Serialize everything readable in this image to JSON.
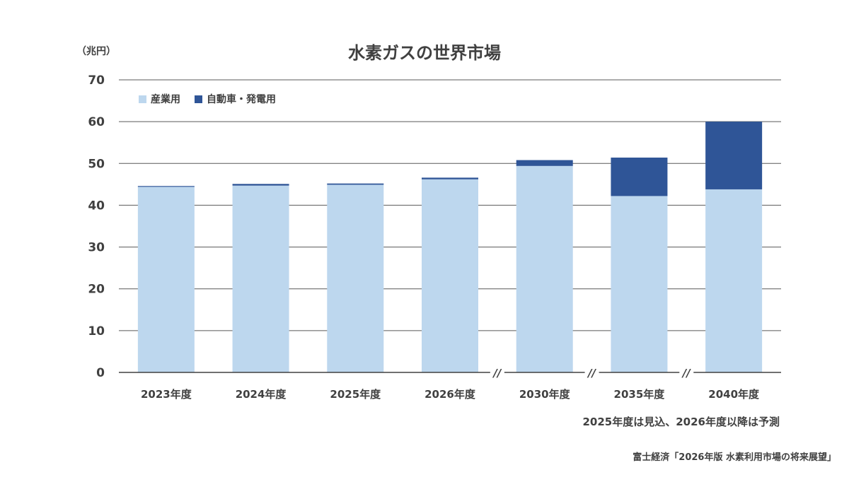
{
  "chart_data": {
    "type": "bar",
    "stacked": true,
    "title": "水素ガスの世界市場",
    "unit_label": "（兆円）",
    "categories": [
      "2023年度",
      "2024年度",
      "2025年度",
      "2026年度",
      "2030年度",
      "2035年度",
      "2040年度"
    ],
    "series": [
      {
        "name": "産業用",
        "color": "#bdd7ee",
        "values": [
          44.4,
          44.7,
          44.9,
          46.2,
          49.4,
          42.2,
          43.8
        ]
      },
      {
        "name": "自動車・発電用",
        "color": "#2f5597",
        "values": [
          0.2,
          0.4,
          0.3,
          0.4,
          1.4,
          9.2,
          16.2
        ]
      }
    ],
    "ylim": [
      0,
      70
    ],
    "yticks": [
      0,
      10,
      20,
      30,
      40,
      50,
      60,
      70
    ],
    "grid": true,
    "legend_position": "top-left",
    "axis_breaks_before": [
      "2030年度",
      "2035年度",
      "2040年度"
    ],
    "axis_break_label": "//",
    "note": "2025年度は見込、2026年度以降は予測",
    "source": "富士経済「2026年版 水素利用市場の将来展望」"
  }
}
